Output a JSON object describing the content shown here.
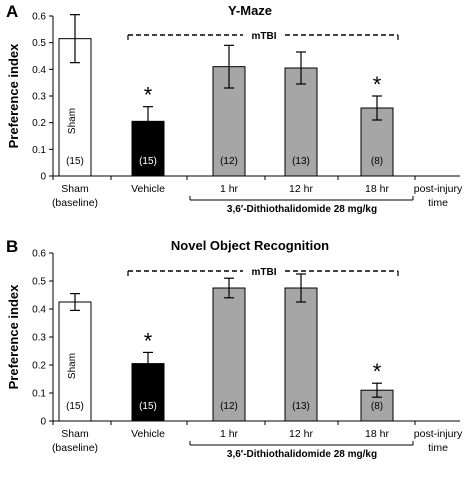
{
  "chart_data": [
    {
      "panel": "A",
      "type": "bar",
      "title": "Y-Maze",
      "ylabel": "Preference index",
      "ylim": [
        0,
        0.6
      ],
      "yticks": [
        "0",
        "0.1",
        "0.2",
        "0.3",
        "0.4",
        "0.5",
        "0.6"
      ],
      "categories": [
        "Sham\n(baseline)",
        "Vehicle",
        "1 hr",
        "12 hr",
        "18 hr"
      ],
      "values": [
        0.515,
        0.205,
        0.41,
        0.405,
        0.255
      ],
      "errors": [
        0.09,
        0.055,
        0.08,
        0.06,
        0.045
      ],
      "n_labels": [
        "(15)",
        "(15)",
        "(12)",
        "(13)",
        "(8)"
      ],
      "bar_colors": [
        "#ffffff",
        "#000000",
        "#a6a6a6",
        "#a6a6a6",
        "#a6a6a6"
      ],
      "significant": [
        false,
        true,
        false,
        false,
        true
      ],
      "star": "*",
      "sham_label": "Sham",
      "bracket_label": "mTBI",
      "group_label": "3,6′-Dithiothalidomide 28 mg/kg",
      "post_injury_label": "post-injury\ntime"
    },
    {
      "panel": "B",
      "type": "bar",
      "title": "Novel Object Recognition",
      "ylabel": "Preference index",
      "ylim": [
        0,
        0.6
      ],
      "yticks": [
        "0",
        "0.1",
        "0.2",
        "0.3",
        "0.4",
        "0.5",
        "0.6"
      ],
      "categories": [
        "Sham\n(baseline)",
        "Vehicle",
        "1 hr",
        "12 hr",
        "18 hr"
      ],
      "values": [
        0.425,
        0.205,
        0.475,
        0.475,
        0.11
      ],
      "errors": [
        0.03,
        0.04,
        0.035,
        0.05,
        0.025
      ],
      "n_labels": [
        "(15)",
        "(15)",
        "(12)",
        "(13)",
        "(8)"
      ],
      "bar_colors": [
        "#ffffff",
        "#000000",
        "#a6a6a6",
        "#a6a6a6",
        "#a6a6a6"
      ],
      "significant": [
        false,
        true,
        false,
        false,
        true
      ],
      "star": "*",
      "sham_label": "Sham",
      "bracket_label": "mTBI",
      "group_label": "3,6′-Dithiothalidomide 28 mg/kg",
      "post_injury_label": "post-injury\ntime"
    }
  ]
}
